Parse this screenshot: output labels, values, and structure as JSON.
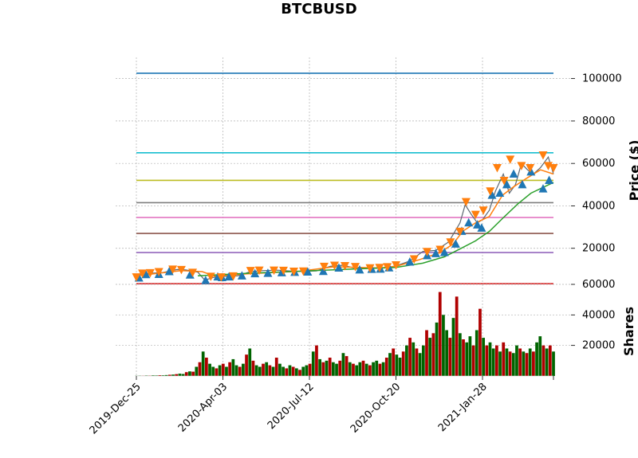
{
  "chart_data": [
    {
      "type": "line",
      "title": "BTCBUSD",
      "ylabel": "Price ($)",
      "x_ticks": [
        "2019-Dec-25",
        "2020-Apr-03",
        "2020-Jul-12",
        "2020-Oct-20",
        "2021-Jan-28"
      ],
      "x_range": [
        "2019-12-25",
        "2021-04-20"
      ],
      "y_ticks": [
        20000,
        40000,
        60000,
        80000,
        100000
      ],
      "ylim": [
        3000,
        110000
      ],
      "grid": true,
      "series": [
        {
          "color": "#5b6670",
          "role": "price",
          "x": [
            "2019-12-25",
            "2020-01-10",
            "2020-01-25",
            "2020-02-10",
            "2020-02-20",
            "2020-03-05",
            "2020-03-13",
            "2020-03-25",
            "2020-04-05",
            "2020-04-20",
            "2020-05-05",
            "2020-05-20",
            "2020-06-05",
            "2020-06-20",
            "2020-07-05",
            "2020-07-20",
            "2020-08-05",
            "2020-08-20",
            "2020-09-05",
            "2020-09-20",
            "2020-10-05",
            "2020-10-20",
            "2020-11-05",
            "2020-11-20",
            "2020-12-05",
            "2020-12-20",
            "2021-01-02",
            "2021-01-08",
            "2021-01-15",
            "2021-01-22",
            "2021-01-28",
            "2021-02-05",
            "2021-02-12",
            "2021-02-21",
            "2021-02-28",
            "2021-03-07",
            "2021-03-14",
            "2021-03-21",
            "2021-03-28",
            "2021-04-05",
            "2021-04-14",
            "2021-04-20"
          ],
          "y": [
            7200,
            8200,
            8600,
            10000,
            9800,
            8800,
            5000,
            6500,
            6800,
            7000,
            9000,
            9500,
            9700,
            9300,
            9100,
            9300,
            11500,
            12000,
            10400,
            10900,
            10700,
            11700,
            14000,
            18500,
            19000,
            23000,
            32000,
            40500,
            36000,
            32000,
            33500,
            38000,
            47000,
            55000,
            46000,
            50000,
            60000,
            57000,
            55000,
            58000,
            63000,
            55000
          ]
        },
        {
          "color": "#ff7f0e",
          "role": "ma-short",
          "x": [
            "2019-12-25",
            "2020-02-15",
            "2020-03-10",
            "2020-03-25",
            "2020-05-01",
            "2020-07-01",
            "2020-08-10",
            "2020-10-01",
            "2020-10-20",
            "2020-11-15",
            "2020-12-10",
            "2020-12-25",
            "2021-01-05",
            "2021-01-20",
            "2021-02-05",
            "2021-02-20",
            "2021-03-05",
            "2021-03-20",
            "2021-04-05",
            "2021-04-20"
          ],
          "y": [
            7000,
            9500,
            9000,
            6800,
            8000,
            9200,
            11300,
            10700,
            11500,
            14500,
            18000,
            22000,
            28000,
            32000,
            35000,
            45000,
            49000,
            53000,
            57000,
            55000
          ]
        },
        {
          "color": "#2ca02c",
          "role": "ma-long",
          "x": [
            "2020-03-05",
            "2020-05-01",
            "2020-07-01",
            "2020-09-01",
            "2020-10-20",
            "2020-11-20",
            "2020-12-15",
            "2021-01-01",
            "2021-01-20",
            "2021-02-05",
            "2021-02-20",
            "2021-03-10",
            "2021-03-25",
            "2021-04-20"
          ],
          "y": [
            7000,
            8200,
            9200,
            10200,
            11000,
            13000,
            16000,
            19500,
            23500,
            28000,
            34000,
            41000,
            46000,
            51000
          ]
        }
      ],
      "markers": {
        "up": {
          "color": "#1f77b4",
          "x": [
            "2019-12-28",
            "2020-01-05",
            "2020-01-20",
            "2020-02-01",
            "2020-02-25",
            "2020-03-14",
            "2020-03-28",
            "2020-04-02",
            "2020-04-10",
            "2020-04-25",
            "2020-05-10",
            "2020-05-25",
            "2020-06-10",
            "2020-06-25",
            "2020-07-10",
            "2020-07-28",
            "2020-08-15",
            "2020-09-08",
            "2020-09-22",
            "2020-10-02",
            "2020-10-12",
            "2020-11-05",
            "2020-11-25",
            "2020-12-05",
            "2020-12-15",
            "2020-12-28",
            "2021-01-04",
            "2021-01-12",
            "2021-01-22",
            "2021-01-27",
            "2021-02-08",
            "2021-02-17",
            "2021-02-25",
            "2021-03-05",
            "2021-03-15",
            "2021-03-25",
            "2021-04-08",
            "2021-04-15"
          ],
          "y": [
            6000,
            7600,
            7700,
            9000,
            7400,
            4800,
            6500,
            6200,
            6500,
            7000,
            8000,
            8200,
            8500,
            8700,
            8800,
            9100,
            10700,
            9800,
            10100,
            10200,
            10800,
            13500,
            16500,
            17500,
            18000,
            22000,
            28000,
            32000,
            31000,
            29500,
            45000,
            46000,
            50000,
            55000,
            50000,
            56000,
            48000,
            52000
          ]
        },
        "down": {
          "color": "#ff7f0e",
          "x": [
            "2019-12-25",
            "2020-01-01",
            "2020-01-10",
            "2020-01-20",
            "2020-02-05",
            "2020-02-15",
            "2020-02-28",
            "2020-03-20",
            "2020-04-01",
            "2020-04-15",
            "2020-05-05",
            "2020-05-15",
            "2020-06-01",
            "2020-06-12",
            "2020-06-24",
            "2020-07-05",
            "2020-07-29",
            "2020-08-10",
            "2020-08-22",
            "2020-09-03",
            "2020-09-20",
            "2020-10-01",
            "2020-10-10",
            "2020-10-20",
            "2020-11-10",
            "2020-11-25",
            "2020-12-10",
            "2020-12-22",
            "2021-01-02",
            "2021-01-09",
            "2021-01-20",
            "2021-01-29",
            "2021-02-06",
            "2021-02-14",
            "2021-02-22",
            "2021-03-01",
            "2021-03-14",
            "2021-03-24",
            "2021-04-08",
            "2021-04-14",
            "2021-04-20"
          ],
          "y": [
            6500,
            8300,
            8500,
            9000,
            10200,
            10000,
            8700,
            6800,
            6500,
            7000,
            9500,
            9700,
            9700,
            9600,
            9200,
            9300,
            11500,
            12000,
            11800,
            11400,
            10800,
            11000,
            11300,
            12200,
            15000,
            18500,
            19500,
            23000,
            28000,
            42000,
            36000,
            38000,
            47000,
            58000,
            52000,
            62000,
            59000,
            58000,
            64000,
            59000,
            58000
          ]
        }
      },
      "hlines": [
        {
          "y": 3300,
          "color": "#d62728"
        },
        {
          "y": 18000,
          "color": "#9467bd"
        },
        {
          "y": 27000,
          "color": "#8c564b"
        },
        {
          "y": 34500,
          "color": "#e377c2"
        },
        {
          "y": 41500,
          "color": "#7f7f7f"
        },
        {
          "y": 52000,
          "color": "#bcbd22"
        },
        {
          "y": 65000,
          "color": "#17becf"
        },
        {
          "y": 102500,
          "color": "#1f77b4"
        }
      ]
    },
    {
      "type": "bar",
      "ylabel": "Shares",
      "y_ticks": [
        20000,
        40000,
        60000
      ],
      "ylim": [
        0,
        60000
      ],
      "grid": true,
      "up_color": "#006400",
      "down_color": "#b00000",
      "series": [
        {
          "name": "volume",
          "x_start": "2019-12-25",
          "x_end": "2021-04-20",
          "values": [
            100,
            200,
            150,
            300,
            250,
            400,
            350,
            500,
            450,
            600,
            800,
            900,
            1200,
            1500,
            1300,
            2500,
            3000,
            2800,
            6000,
            9000,
            16000,
            12000,
            8000,
            6000,
            5000,
            7000,
            8000,
            6000,
            9000,
            11000,
            7000,
            6000,
            8000,
            14000,
            18000,
            10000,
            7000,
            6000,
            8000,
            9000,
            7000,
            6000,
            12000,
            8000,
            6000,
            5000,
            7000,
            6000,
            5000,
            4000,
            6000,
            7000,
            8000,
            16000,
            20000,
            11000,
            9000,
            10000,
            12000,
            9000,
            8000,
            10000,
            15000,
            13000,
            9000,
            8000,
            7000,
            9000,
            10000,
            8000,
            7000,
            9000,
            10000,
            8000,
            9000,
            12000,
            15000,
            18000,
            14000,
            12000,
            16000,
            20000,
            25000,
            22000,
            18000,
            15000,
            20000,
            30000,
            25000,
            28000,
            35000,
            55000,
            40000,
            30000,
            25000,
            38000,
            52000,
            28000,
            24000,
            22000,
            26000,
            20000,
            30000,
            44000,
            25000,
            20000,
            22000,
            18000,
            20000,
            16000,
            22000,
            18000,
            16000,
            15000,
            20000,
            18000,
            16000,
            15000,
            18000,
            16000,
            22000,
            26000,
            20000,
            18000,
            20000,
            16000
          ]
        },
        {
          "name": "direction",
          "values": [
            1,
            1,
            0,
            1,
            0,
            1,
            1,
            0,
            1,
            1,
            0,
            1,
            0,
            1,
            1,
            0,
            1,
            0,
            1,
            0,
            1,
            0,
            1,
            1,
            0,
            1,
            0,
            1,
            0,
            1,
            1,
            0,
            1,
            0,
            1,
            0,
            1,
            1,
            0,
            1,
            0,
            1,
            0,
            1,
            1,
            0,
            1,
            0,
            1,
            0,
            1,
            1,
            0,
            1,
            0,
            1,
            0,
            1,
            0,
            1,
            1,
            0,
            1,
            0,
            1,
            0,
            1,
            1,
            0,
            1,
            0,
            1,
            1,
            0,
            1,
            0,
            1,
            0,
            1,
            1,
            0,
            1,
            0,
            1,
            0,
            1,
            1,
            0,
            1,
            0,
            1,
            0,
            1,
            1,
            0,
            1,
            0,
            1,
            0,
            1,
            1,
            0,
            1,
            0,
            1,
            0,
            1,
            1,
            0,
            1,
            0,
            1,
            0,
            1,
            1,
            0,
            1,
            0,
            1,
            0,
            1,
            1,
            0,
            1,
            0,
            1
          ]
        }
      ]
    }
  ]
}
